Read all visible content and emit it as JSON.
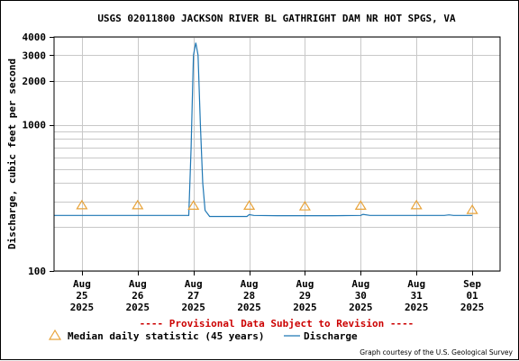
{
  "chart_data": {
    "type": "line",
    "title": "USGS 02011800 JACKSON RIVER BL GATHRIGHT DAM NR HOT SPGS, VA",
    "ylabel": "Discharge, cubic feet per second",
    "xlabel": "",
    "y_scale": "log",
    "ylim": [
      100,
      4000
    ],
    "xlim": [
      "2025-08-24T12:00",
      "2025-09-01T12:00"
    ],
    "grid": true,
    "y_ticks": [
      {
        "value": 100,
        "label": "100"
      },
      {
        "value": 1000,
        "label": "1000"
      },
      {
        "value": 2000,
        "label": "2000"
      },
      {
        "value": 3000,
        "label": "3000"
      },
      {
        "value": 4000,
        "label": "4000"
      }
    ],
    "y_minor_gridlines": [
      200,
      300,
      400,
      500,
      600,
      700,
      800,
      900
    ],
    "x_ticks": [
      {
        "value": "2025-08-25",
        "lines": [
          "Aug",
          "25",
          "2025"
        ]
      },
      {
        "value": "2025-08-26",
        "lines": [
          "Aug",
          "26",
          "2025"
        ]
      },
      {
        "value": "2025-08-27",
        "lines": [
          "Aug",
          "27",
          "2025"
        ]
      },
      {
        "value": "2025-08-28",
        "lines": [
          "Aug",
          "28",
          "2025"
        ]
      },
      {
        "value": "2025-08-29",
        "lines": [
          "Aug",
          "29",
          "2025"
        ]
      },
      {
        "value": "2025-08-30",
        "lines": [
          "Aug",
          "30",
          "2025"
        ]
      },
      {
        "value": "2025-08-31",
        "lines": [
          "Aug",
          "31",
          "2025"
        ]
      },
      {
        "value": "2025-09-01",
        "lines": [
          "Sep",
          "01",
          "2025"
        ]
      }
    ],
    "series": [
      {
        "name": "Discharge",
        "color": "#1f77b4",
        "style": "line",
        "points": [
          [
            "2025-08-24T12:00",
            240
          ],
          [
            "2025-08-26T22:00",
            240
          ],
          [
            "2025-08-26T23:00",
            700
          ],
          [
            "2025-08-27T00:00",
            3000
          ],
          [
            "2025-08-27T01:00",
            3650
          ],
          [
            "2025-08-27T02:00",
            3000
          ],
          [
            "2025-08-27T03:00",
            1000
          ],
          [
            "2025-08-27T04:00",
            400
          ],
          [
            "2025-08-27T05:00",
            260
          ],
          [
            "2025-08-27T07:00",
            236
          ],
          [
            "2025-08-27T23:00",
            236
          ],
          [
            "2025-08-28T00:00",
            243
          ],
          [
            "2025-08-28T02:00",
            240
          ],
          [
            "2025-08-28T12:00",
            239
          ],
          [
            "2025-08-29T12:00",
            239
          ],
          [
            "2025-08-30T00:00",
            240
          ],
          [
            "2025-08-30T01:00",
            244
          ],
          [
            "2025-08-30T04:00",
            240
          ],
          [
            "2025-08-31T12:00",
            240
          ],
          [
            "2025-08-31T14:00",
            242
          ],
          [
            "2025-08-31T16:00",
            240
          ],
          [
            "2025-09-01T00:00",
            240
          ]
        ]
      },
      {
        "name": "Median daily statistic (45 years)",
        "color": "#e8a33a",
        "style": "triangle",
        "points": [
          [
            "2025-08-25T00:00",
            282
          ],
          [
            "2025-08-26T00:00",
            282
          ],
          [
            "2025-08-27T00:00",
            280
          ],
          [
            "2025-08-28T00:00",
            280
          ],
          [
            "2025-08-29T00:00",
            277
          ],
          [
            "2025-08-30T00:00",
            280
          ],
          [
            "2025-08-31T00:00",
            282
          ],
          [
            "2025-09-01T00:00",
            262
          ]
        ]
      }
    ],
    "legend": {
      "placement": "bottom",
      "items": [
        {
          "label": "Median daily statistic (45 years)",
          "marker": "triangle",
          "color": "#e8a33a"
        },
        {
          "label": "Discharge",
          "marker": "line",
          "color": "#1f77b4"
        }
      ]
    },
    "annotations": {
      "provisional": "---- Provisional Data Subject to Revision ----",
      "credit": "Graph courtesy of the U.S. Geological Survey"
    }
  }
}
